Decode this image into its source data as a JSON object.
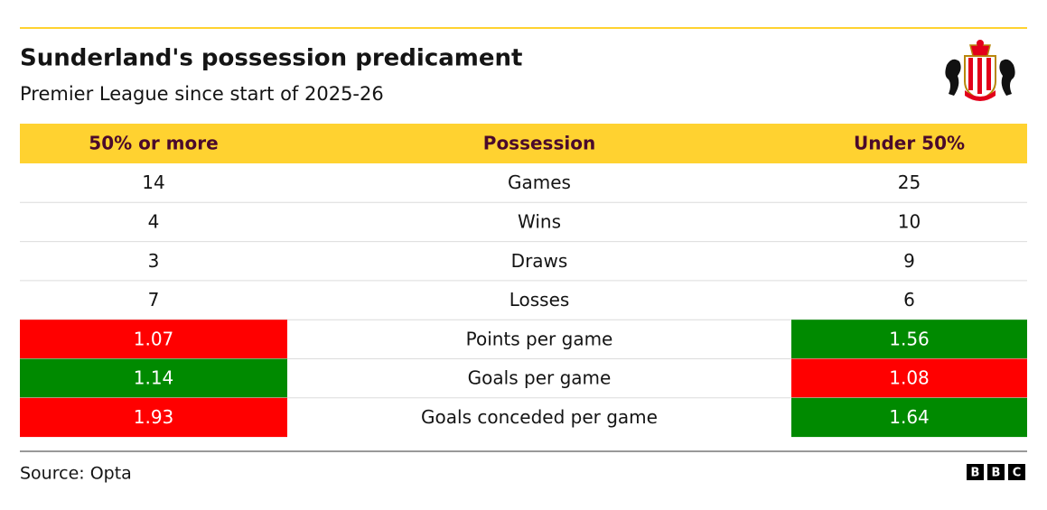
{
  "header": {
    "title": "Sunderland's possession predicament",
    "subtitle": "Premier League since start of 2025-26"
  },
  "table": {
    "columns": [
      "50% or more",
      "Possession",
      "Under 50%"
    ],
    "header_fill": "#ffd230",
    "rows": [
      {
        "cells": [
          14,
          "Games",
          25
        ]
      },
      {
        "cells": [
          4,
          "Wins",
          10
        ]
      },
      {
        "cells": [
          3,
          "Draws",
          9
        ]
      },
      {
        "cells": [
          7,
          "Losses",
          6
        ]
      },
      {
        "cells": [
          1.07,
          "Points per game",
          1.56
        ],
        "fills": [
          "#ff0000",
          "#008a00"
        ]
      },
      {
        "cells": [
          1.14,
          "Goals per game",
          1.08
        ],
        "fills": [
          "#008a00",
          "#ff0000"
        ]
      },
      {
        "cells": [
          1.93,
          "Goals conceded per game",
          1.64
        ],
        "fills": [
          "#ff0000",
          "#008a00"
        ]
      }
    ]
  },
  "footer": {
    "source": "Source: Opta",
    "logo": [
      "B",
      "B",
      "C"
    ]
  }
}
